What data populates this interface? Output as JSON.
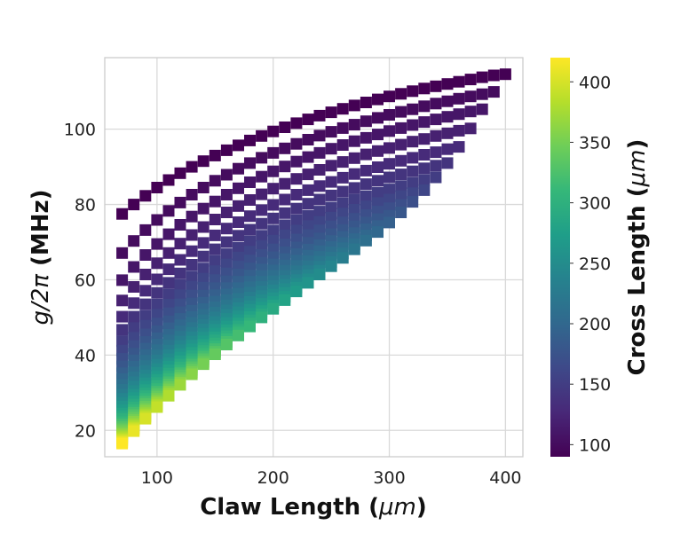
{
  "chart_data": {
    "type": "scatter",
    "marker": "square",
    "xlabel": {
      "prefix": "Claw Length (",
      "math": "μm",
      "suffix": ")"
    },
    "ylabel": {
      "math": "g/2π",
      "suffix": " (MHz)"
    },
    "colorbar_label": {
      "prefix": "Cross Length (",
      "math": "μm",
      "suffix": ")"
    },
    "colormap": "viridis",
    "colormap_stops": [
      "#440154",
      "#482878",
      "#3e4989",
      "#31688e",
      "#26828e",
      "#1f9e89",
      "#35b779",
      "#6ece58",
      "#b5de2b",
      "#fde725"
    ],
    "xlim": [
      55,
      415
    ],
    "ylim": [
      13,
      119
    ],
    "clim": [
      90,
      420
    ],
    "xticks": [
      100,
      200,
      300,
      400
    ],
    "xtick_labels": [
      "100",
      "200",
      "300",
      "400"
    ],
    "yticks": [
      20,
      40,
      60,
      80,
      100
    ],
    "ytick_labels": [
      "20",
      "40",
      "60",
      "80",
      "100"
    ],
    "cticks": [
      100,
      150,
      200,
      250,
      300,
      350,
      400
    ],
    "ctick_labels": [
      "100",
      "150",
      "200",
      "250",
      "300",
      "350",
      "400"
    ],
    "grid": true,
    "x": [
      70,
      80,
      90,
      100,
      110,
      120,
      130,
      140,
      150,
      160,
      170,
      180,
      190,
      200,
      210,
      220,
      230,
      240,
      250,
      260,
      270,
      280,
      290,
      300,
      310,
      320,
      330,
      340,
      350,
      360,
      370,
      380,
      390,
      400
    ],
    "series": [
      {
        "cross_length": 90,
        "x_start": 70,
        "y": [
          77.5,
          80,
          82.3,
          84.5,
          86.5,
          88.3,
          90,
          91.5,
          93,
          94.4,
          95.7,
          97,
          98.2,
          99.4,
          100.5,
          101.6,
          102.6,
          103.6,
          104.5,
          105.4,
          106.3,
          107.1,
          107.9,
          108.7,
          109.4,
          110.1,
          110.8,
          111.4,
          112,
          112.6,
          113.2,
          113.8,
          114.3,
          114.6
        ]
      },
      {
        "cross_length": 100,
        "x_start": 70,
        "y": [
          67.1,
          70.3,
          73.2,
          75.9,
          78.3,
          80.5,
          82.6,
          84.5,
          86.3,
          87.9,
          89.5,
          91,
          92.4,
          93.7,
          94.9,
          96.1,
          97.2,
          98.3,
          99.3,
          100.3,
          101.2,
          102.1,
          103,
          103.8,
          104.6,
          105.3,
          106.1,
          106.8,
          107.4,
          108.1,
          108.7,
          109.3,
          109.9
        ]
      },
      {
        "cross_length": 110,
        "x_start": 70,
        "y": [
          59.9,
          63.4,
          66.6,
          69.5,
          72.1,
          74.6,
          76.8,
          78.9,
          80.8,
          82.6,
          84.3,
          85.9,
          87.4,
          88.8,
          90.1,
          91.4,
          92.6,
          93.7,
          94.8,
          95.8,
          96.8,
          97.7,
          98.6,
          99.5,
          100.3,
          101.1,
          101.9,
          102.6,
          103.3,
          104,
          104.7,
          105.3
        ]
      },
      {
        "cross_length": 120,
        "x_start": 70,
        "y": [
          54.5,
          58.1,
          61.4,
          64.4,
          67.1,
          69.6,
          71.9,
          74,
          76,
          77.9,
          79.6,
          81.2,
          82.7,
          84.2,
          85.5,
          86.8,
          88,
          89.2,
          90.3,
          91.3,
          92.3,
          93.3,
          94.2,
          95,
          95.9,
          96.7,
          97.4,
          98.2,
          98.9,
          99.6,
          100.2
        ]
      },
      {
        "cross_length": 130,
        "x_start": 70,
        "y": [
          50.2,
          53.8,
          57.1,
          60.1,
          62.8,
          65.3,
          67.6,
          69.8,
          71.8,
          73.6,
          75.3,
          76.9,
          78.5,
          79.9,
          81.3,
          82.6,
          83.8,
          84.9,
          86,
          87.1,
          88.1,
          89,
          89.9,
          90.8,
          91.6,
          92.4,
          93.2,
          93.9,
          94.7,
          95.3
        ]
      },
      {
        "cross_length": 140,
        "x_start": 70,
        "y": [
          46.7,
          50.2,
          53.5,
          56.5,
          59.2,
          61.7,
          64,
          66.2,
          68.1,
          70,
          71.7,
          73.3,
          74.9,
          76.3,
          77.7,
          78.9,
          80.2,
          81.3,
          82.4,
          83.4,
          84.4,
          85.4,
          86.3,
          87.2,
          88,
          88.8,
          89.6,
          90.3,
          91
        ]
      },
      {
        "cross_length": 150,
        "x_start": 70,
        "y": [
          43.7,
          47.2,
          50.4,
          53.4,
          56.1,
          58.6,
          60.9,
          63,
          65,
          66.8,
          68.5,
          70.2,
          71.7,
          73.1,
          74.5,
          75.8,
          77,
          78.1,
          79.2,
          80.3,
          81.3,
          82.2,
          83.1,
          84,
          84.9,
          85.7,
          86.5,
          87.2
        ]
      },
      {
        "cross_length": 160,
        "x_start": 70,
        "y": [
          41.2,
          44.6,
          47.8,
          50.7,
          53.4,
          55.9,
          58.2,
          60.3,
          62.3,
          64.1,
          65.9,
          67.5,
          69,
          70.4,
          71.8,
          73.1,
          74.3,
          75.4,
          76.5,
          77.6,
          78.6,
          79.5,
          80.4,
          81.3,
          82.2,
          83,
          83.8
        ]
      },
      {
        "cross_length": 170,
        "x_start": 70,
        "y": [
          39,
          42.4,
          45.5,
          48.4,
          51.1,
          53.5,
          55.8,
          57.9,
          59.9,
          61.7,
          63.5,
          65.1,
          66.6,
          68.1,
          69.4,
          70.7,
          71.9,
          73.1,
          74.2,
          75.2,
          76.2,
          77.2,
          78.1,
          79,
          79.9,
          80.7
        ]
      },
      {
        "cross_length": 180,
        "x_start": 70,
        "y": [
          37,
          40.4,
          43.5,
          46.3,
          49,
          51.4,
          53.7,
          55.8,
          57.8,
          59.6,
          61.4,
          63,
          64.5,
          66,
          67.3,
          68.6,
          69.8,
          71,
          72.1,
          73.2,
          74.2,
          75.2,
          76.1,
          77,
          77.9
        ]
      },
      {
        "cross_length": 190,
        "x_start": 70,
        "y": [
          35.2,
          38.6,
          41.7,
          44.5,
          47.1,
          49.6,
          51.8,
          53.9,
          55.9,
          57.8,
          59.5,
          61.1,
          62.7,
          64.1,
          65.5,
          66.8,
          68,
          69.2,
          70.3,
          71.4,
          72.4,
          73.4,
          74.3,
          75.2
        ]
      },
      {
        "cross_length": 200,
        "x_start": 70,
        "y": [
          33.6,
          36.9,
          40,
          42.8,
          45.4,
          47.9,
          50.1,
          52.2,
          54.2,
          56.1,
          57.8,
          59.5,
          61,
          62.5,
          63.8,
          65.1,
          66.4,
          67.6,
          68.7,
          69.8,
          70.8,
          71.8,
          72.7
        ]
      },
      {
        "cross_length": 210,
        "x_start": 70,
        "y": [
          32.1,
          35.4,
          38.5,
          41.3,
          43.9,
          46.3,
          48.6,
          50.7,
          52.7,
          54.6,
          56.3,
          58,
          59.5,
          61,
          62.4,
          63.7,
          64.9,
          66.1,
          67.3,
          68.4,
          69.4,
          70.4
        ]
      },
      {
        "cross_length": 220,
        "x_start": 70,
        "y": [
          30.8,
          34.1,
          37.1,
          39.9,
          42.5,
          44.9,
          47.2,
          49.3,
          51.3,
          53.2,
          54.9,
          56.6,
          58.1,
          59.6,
          61,
          62.3,
          63.6,
          64.8,
          65.9,
          67,
          68.1
        ]
      },
      {
        "cross_length": 230,
        "x_start": 70,
        "y": [
          29.5,
          32.8,
          35.8,
          38.6,
          41.2,
          43.6,
          45.9,
          48,
          50,
          51.9,
          53.6,
          55.3,
          56.9,
          58.3,
          59.7,
          61.1,
          62.3,
          63.5,
          64.7,
          65.8
        ]
      },
      {
        "cross_length": 240,
        "x_start": 70,
        "y": [
          28.4,
          31.6,
          34.6,
          37.4,
          40,
          42.4,
          44.7,
          46.8,
          48.8,
          50.7,
          52.5,
          54.1,
          55.7,
          57.2,
          58.6,
          59.9,
          61.2,
          62.4,
          63.6
        ]
      },
      {
        "cross_length": 250,
        "x_start": 70,
        "y": [
          27.3,
          30.5,
          33.5,
          36.3,
          38.9,
          41.3,
          43.6,
          45.7,
          47.7,
          49.6,
          51.4,
          53,
          54.6,
          56.1,
          57.5,
          58.9,
          60.1,
          61.4
        ]
      },
      {
        "cross_length": 260,
        "x_start": 70,
        "y": [
          26.3,
          29.5,
          32.5,
          35.3,
          37.8,
          40.3,
          42.5,
          44.6,
          46.7,
          48.5,
          50.3,
          52,
          53.6,
          55.1,
          56.5,
          57.9,
          59.2
        ]
      },
      {
        "cross_length": 270,
        "x_start": 70,
        "y": [
          25.4,
          28.6,
          31.6,
          34.3,
          36.9,
          39.3,
          41.5,
          43.7,
          45.7,
          47.6,
          49.3,
          51,
          52.6,
          54.1,
          55.5,
          56.9
        ]
      },
      {
        "cross_length": 280,
        "x_start": 70,
        "y": [
          24.5,
          27.7,
          30.7,
          33.4,
          36,
          38.4,
          40.6,
          42.7,
          44.7,
          46.6,
          48.4,
          50.1,
          51.7,
          53.2,
          54.6
        ]
      },
      {
        "cross_length": 290,
        "x_start": 70,
        "y": [
          23.7,
          26.9,
          29.8,
          32.6,
          35.1,
          37.5,
          39.7,
          41.9,
          43.9,
          45.8,
          47.6,
          49.2,
          50.8,
          52.3
        ]
      },
      {
        "cross_length": 300,
        "x_start": 70,
        "y": [
          23,
          26.1,
          29.1,
          31.8,
          34.3,
          36.7,
          38.9,
          41.1,
          43.1,
          45,
          46.7,
          48.4,
          50
        ]
      },
      {
        "cross_length": 310,
        "x_start": 70,
        "y": [
          22.2,
          25.4,
          28.3,
          31,
          33.6,
          35.9,
          38.2,
          40.3,
          42.3,
          44.2,
          46,
          47.6
        ]
      },
      {
        "cross_length": 320,
        "x_start": 70,
        "y": [
          21.6,
          24.7,
          27.6,
          30.3,
          32.8,
          35.2,
          37.5,
          39.6,
          41.6,
          43.5,
          45.2
        ]
      },
      {
        "cross_length": 330,
        "x_start": 70,
        "y": [
          20.9,
          24.1,
          27,
          29.7,
          32.2,
          34.6,
          36.8,
          38.9,
          40.9,
          42.8
        ]
      },
      {
        "cross_length": 340,
        "x_start": 70,
        "y": [
          20.3,
          23.4,
          26.3,
          29,
          31.5,
          33.9,
          36.1,
          38.2,
          40.2
        ]
      },
      {
        "cross_length": 350,
        "x_start": 70,
        "y": [
          19.8,
          22.8,
          25.7,
          28.4,
          30.9,
          33.3,
          35.5,
          37.6
        ]
      },
      {
        "cross_length": 360,
        "x_start": 70,
        "y": [
          19.2,
          22.3,
          25.2,
          27.8,
          30.3,
          32.7,
          34.9
        ]
      },
      {
        "cross_length": 370,
        "x_start": 70,
        "y": [
          18.7,
          21.7,
          24.6,
          27.3,
          29.8,
          32.1
        ]
      },
      {
        "cross_length": 380,
        "x_start": 70,
        "y": [
          18.2,
          21.2,
          24.1,
          26.7,
          29.2
        ]
      },
      {
        "cross_length": 390,
        "x_start": 70,
        "y": [
          17.7,
          20.7,
          23.6,
          26.2
        ]
      },
      {
        "cross_length": 400,
        "x_start": 70,
        "y": [
          17.3,
          20.3,
          23.1
        ]
      },
      {
        "cross_length": 410,
        "x_start": 70,
        "y": [
          16.9,
          19.8
        ]
      },
      {
        "cross_length": 420,
        "x_start": 70,
        "y": [
          16.5
        ]
      }
    ]
  }
}
